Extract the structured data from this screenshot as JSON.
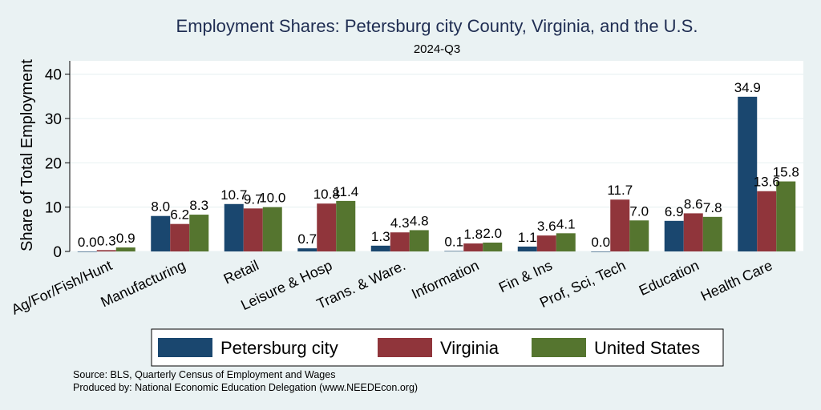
{
  "chart_data": {
    "type": "bar",
    "title": "Employment Shares: Petersburg city County, Virginia, and the U.S.",
    "subtitle": "2024-Q3",
    "xlabel": "",
    "ylabel": "Share of Total Employment",
    "ylim": [
      0,
      43
    ],
    "yticks": [
      0,
      10,
      20,
      30,
      40
    ],
    "grid": true,
    "legend_position": "bottom",
    "categories": [
      "Ag/For/Fish/Hunt",
      "Manufacturing",
      "Retail",
      "Leisure & Hosp",
      "Trans. & Ware.",
      "Information",
      "Fin & Ins",
      "Prof, Sci, Tech",
      "Education",
      "Health Care"
    ],
    "series": [
      {
        "name": "Petersburg city",
        "color": "#1a476f",
        "values": [
          0.0,
          8.0,
          10.7,
          0.7,
          1.3,
          0.1,
          1.1,
          0.0,
          6.9,
          34.9
        ],
        "labels": [
          "0.0",
          "8.0",
          "10.7",
          "0.7",
          "1.3",
          "0.1",
          "1.1",
          "0.0",
          "6.9",
          "34.9"
        ]
      },
      {
        "name": "Virginia",
        "color": "#90353b",
        "values": [
          0.3,
          6.2,
          9.7,
          10.8,
          4.3,
          1.8,
          3.6,
          11.7,
          8.6,
          13.6
        ],
        "labels": [
          "0.3",
          "6.2",
          "9.7",
          "10.8",
          "4.3",
          "1.8",
          "3.6",
          "11.7",
          "8.6",
          "13.6"
        ]
      },
      {
        "name": "United States",
        "color": "#55752f",
        "values": [
          0.9,
          8.3,
          10.0,
          11.4,
          4.8,
          2.0,
          4.1,
          7.0,
          7.8,
          15.8
        ],
        "labels": [
          "0.9",
          "8.3",
          "10.0",
          "11.4",
          "4.8",
          "2.0",
          "4.1",
          "7.0",
          "7.8",
          "15.8"
        ]
      }
    ],
    "notes": [
      "Source: BLS, Quarterly Census of Employment and Wages",
      "Produced by: National Economic Education Delegation (www.NEEDEcon.org)"
    ]
  }
}
